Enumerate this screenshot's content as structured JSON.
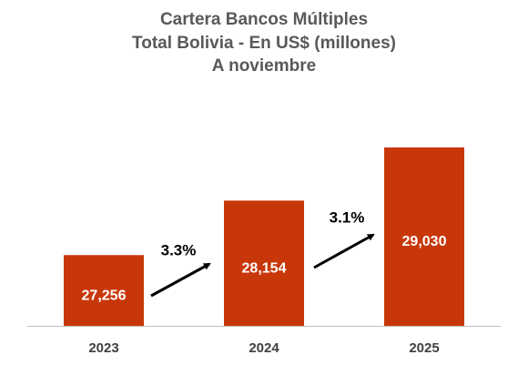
{
  "chart_data": {
    "type": "bar",
    "title": [
      "Cartera Bancos Múltiples",
      "Total Bolivia - En US$ (millones)",
      "A noviembre"
    ],
    "categories": [
      "2023",
      "2024",
      "2025"
    ],
    "values": [
      27256,
      28154,
      29030
    ],
    "value_labels": [
      "27,256",
      "28,154",
      "29,030"
    ],
    "color": "#c8370a",
    "ylim": [
      26090,
      29960
    ],
    "annotations": [
      "3.3%",
      "3.1%"
    ]
  }
}
